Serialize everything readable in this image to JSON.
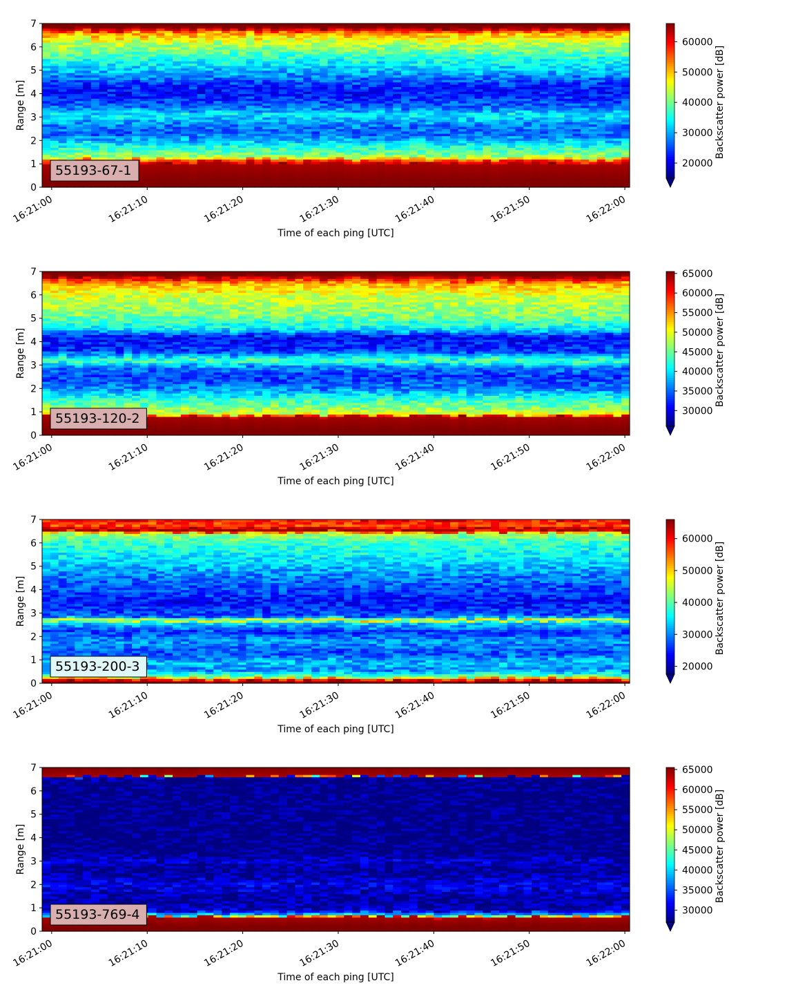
{
  "chart_data": [
    {
      "type": "heatmap",
      "label_box": "55193-67-1",
      "label_box_color": "#d8aeae",
      "xlabel": "Time of each ping [UTC]",
      "ylabel": "Range [m]",
      "colorbar_label": "Backscatter power [dB]",
      "colormap": "jet",
      "colorbar_extend": "min",
      "xlim": [
        "16:20:59",
        "16:22:00.5"
      ],
      "xticks": [
        "16:21:00",
        "16:21:10",
        "16:21:20",
        "16:21:30",
        "16:21:40",
        "16:21:50",
        "16:22:00"
      ],
      "ylim": [
        0,
        7
      ],
      "yticks": [
        "0",
        "1",
        "2",
        "3",
        "4",
        "5",
        "6",
        "7"
      ],
      "clim": [
        15000,
        66000
      ],
      "cbar_ticks": [
        "20000",
        "30000",
        "40000",
        "50000",
        "60000"
      ],
      "profile": [
        {
          "range": 0.0,
          "power": 66000
        },
        {
          "range": 0.2,
          "power": 66000
        },
        {
          "range": 1.0,
          "power": 64000
        },
        {
          "range": 1.15,
          "power": 56000
        },
        {
          "range": 1.3,
          "power": 42000
        },
        {
          "range": 1.7,
          "power": 36000
        },
        {
          "range": 2.0,
          "power": 31000
        },
        {
          "range": 2.3,
          "power": 26000
        },
        {
          "range": 2.7,
          "power": 28000
        },
        {
          "range": 3.1,
          "power": 34000
        },
        {
          "range": 3.4,
          "power": 27000
        },
        {
          "range": 4.0,
          "power": 22000
        },
        {
          "range": 4.4,
          "power": 24000
        },
        {
          "range": 5.0,
          "power": 31000
        },
        {
          "range": 5.6,
          "power": 37000
        },
        {
          "range": 6.2,
          "power": 44000
        },
        {
          "range": 6.6,
          "power": 52000
        },
        {
          "range": 6.75,
          "power": 62000
        },
        {
          "range": 6.85,
          "power": 66000
        },
        {
          "range": 7.0,
          "power": 66000
        }
      ]
    },
    {
      "type": "heatmap",
      "label_box": "55193-120-2",
      "label_box_color": "#d8aeae",
      "xlabel": "Time of each ping [UTC]",
      "ylabel": "Range [m]",
      "colorbar_label": "Backscatter power [dB]",
      "colormap": "jet",
      "colorbar_extend": "min",
      "xlim": [
        "16:20:59",
        "16:22:00.5"
      ],
      "xticks": [
        "16:21:00",
        "16:21:10",
        "16:21:20",
        "16:21:30",
        "16:21:40",
        "16:21:50",
        "16:22:00"
      ],
      "ylim": [
        0,
        7
      ],
      "yticks": [
        "0",
        "1",
        "2",
        "3",
        "4",
        "5",
        "6",
        "7"
      ],
      "clim": [
        26000,
        65500
      ],
      "cbar_ticks": [
        "30000",
        "35000",
        "40000",
        "45000",
        "50000",
        "55000",
        "60000",
        "65000"
      ],
      "profile": [
        {
          "range": 0.0,
          "power": 65500
        },
        {
          "range": 0.2,
          "power": 65500
        },
        {
          "range": 0.8,
          "power": 64000
        },
        {
          "range": 0.9,
          "power": 50000
        },
        {
          "range": 1.2,
          "power": 46000
        },
        {
          "range": 1.6,
          "power": 42000
        },
        {
          "range": 2.0,
          "power": 36000
        },
        {
          "range": 2.5,
          "power": 33000
        },
        {
          "range": 2.9,
          "power": 36000
        },
        {
          "range": 3.2,
          "power": 44000
        },
        {
          "range": 3.6,
          "power": 33000
        },
        {
          "range": 4.2,
          "power": 31000
        },
        {
          "range": 4.6,
          "power": 41000
        },
        {
          "range": 5.2,
          "power": 46000
        },
        {
          "range": 6.0,
          "power": 49000
        },
        {
          "range": 6.5,
          "power": 54000
        },
        {
          "range": 6.7,
          "power": 61000
        },
        {
          "range": 6.85,
          "power": 65500
        },
        {
          "range": 7.0,
          "power": 65500
        }
      ]
    },
    {
      "type": "heatmap",
      "label_box": "55193-200-3",
      "label_box_color": "#dff7f7",
      "xlabel": "Time of each ping [UTC]",
      "ylabel": "Range [m]",
      "colorbar_label": "Backscatter power [dB]",
      "colormap": "jet",
      "colorbar_extend": "min",
      "xlim": [
        "16:20:59",
        "16:22:00.5"
      ],
      "xticks": [
        "16:21:00",
        "16:21:10",
        "16:21:20",
        "16:21:30",
        "16:21:40",
        "16:21:50",
        "16:22:00"
      ],
      "ylim": [
        0,
        7
      ],
      "yticks": [
        "0",
        "1",
        "2",
        "3",
        "4",
        "5",
        "6",
        "7"
      ],
      "clim": [
        17500,
        66000
      ],
      "cbar_ticks": [
        "20000",
        "30000",
        "40000",
        "50000",
        "60000"
      ],
      "profile": [
        {
          "range": 0.0,
          "power": 66000
        },
        {
          "range": 0.15,
          "power": 62000
        },
        {
          "range": 0.3,
          "power": 40000
        },
        {
          "range": 0.6,
          "power": 30000
        },
        {
          "range": 0.9,
          "power": 33000
        },
        {
          "range": 1.3,
          "power": 27000
        },
        {
          "range": 1.8,
          "power": 31000
        },
        {
          "range": 2.2,
          "power": 26000
        },
        {
          "range": 2.6,
          "power": 34000
        },
        {
          "range": 2.7,
          "power": 50000
        },
        {
          "range": 2.85,
          "power": 28000
        },
        {
          "range": 3.5,
          "power": 24000
        },
        {
          "range": 4.0,
          "power": 27000
        },
        {
          "range": 4.5,
          "power": 29000
        },
        {
          "range": 5.2,
          "power": 34000
        },
        {
          "range": 6.0,
          "power": 38000
        },
        {
          "range": 6.4,
          "power": 44000
        },
        {
          "range": 6.55,
          "power": 66000
        },
        {
          "range": 6.75,
          "power": 56000
        },
        {
          "range": 7.0,
          "power": 60000
        }
      ]
    },
    {
      "type": "heatmap",
      "label_box": "55193-769-4",
      "label_box_color": "#d8aeae",
      "xlabel": "Time of each ping [UTC]",
      "ylabel": "Range [m]",
      "colorbar_label": "Backscatter power [dB]",
      "colormap": "jet",
      "colorbar_extend": "min",
      "xlim": [
        "16:20:59",
        "16:22:00.5"
      ],
      "xticks": [
        "16:21:00",
        "16:21:10",
        "16:21:20",
        "16:21:30",
        "16:21:40",
        "16:21:50",
        "16:22:00"
      ],
      "ylim": [
        0,
        7
      ],
      "yticks": [
        "0",
        "1",
        "2",
        "3",
        "4",
        "5",
        "6",
        "7"
      ],
      "clim": [
        27000,
        65500
      ],
      "cbar_ticks": [
        "30000",
        "35000",
        "40000",
        "45000",
        "50000",
        "55000",
        "60000",
        "65000"
      ],
      "profile": [
        {
          "range": 0.0,
          "power": 65500
        },
        {
          "range": 0.2,
          "power": 65500
        },
        {
          "range": 0.6,
          "power": 64000
        },
        {
          "range": 0.7,
          "power": 40000
        },
        {
          "range": 0.9,
          "power": 30000
        },
        {
          "range": 1.3,
          "power": 28000
        },
        {
          "range": 2.0,
          "power": 31000
        },
        {
          "range": 2.6,
          "power": 27500
        },
        {
          "range": 3.0,
          "power": 30000
        },
        {
          "range": 3.4,
          "power": 27000
        },
        {
          "range": 6.4,
          "power": 27000
        },
        {
          "range": 6.6,
          "power": 28000
        },
        {
          "range": 6.65,
          "power": 64000
        },
        {
          "range": 7.0,
          "power": 65500
        }
      ]
    }
  ]
}
